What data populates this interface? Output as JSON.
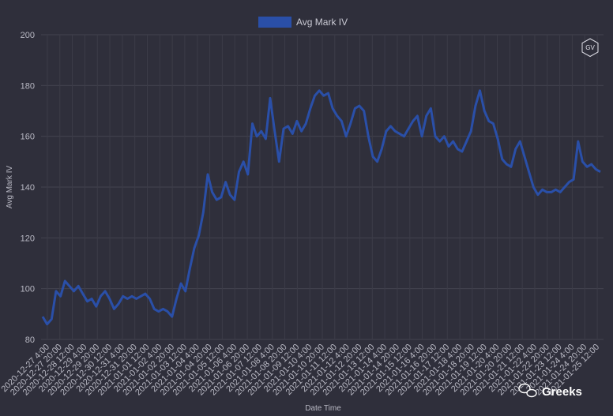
{
  "chart_data": {
    "type": "line",
    "legend": {
      "label": "Avg Mark IV",
      "color": "#2a4fa8",
      "position": "top-center"
    },
    "xlabel": "Date Time",
    "ylabel": "Avg Mark IV",
    "ylim": [
      80,
      200
    ],
    "yticks": [
      80,
      100,
      120,
      140,
      160,
      180,
      200
    ],
    "grid": true,
    "x_tick_labels": [
      "2020-12-27 4:00",
      "2020-12-27 20:00",
      "2020-12-28 12:00",
      "2020-12-29 4:00",
      "2020-12-29 20:00",
      "2020-12-30 12:00",
      "2020-12-31 4:00",
      "2020-12-31 20:00",
      "2021-01-01 12:00",
      "2021-01-02 4:00",
      "2021-01-02 20:00",
      "2021-01-03 12:00",
      "2021-01-04 4:00",
      "2021-01-04 20:00",
      "2021-01-05 12:00",
      "2021-01-06 4:00",
      "2021-01-06 20:00",
      "2021-01-07 12:00",
      "2021-01-08 4:00",
      "2021-01-08 20:00",
      "2021-01-09 12:00",
      "2021-01-10 4:00",
      "2021-01-10 20:00",
      "2021-01-11 12:00",
      "2021-01-12 4:00",
      "2021-01-12 20:00",
      "2021-01-13 12:00",
      "2021-01-14 4:00",
      "2021-01-14 20:00",
      "2021-01-15 12:00",
      "2021-01-16 4:00",
      "2021-01-16 20:00",
      "2021-01-17 12:00",
      "2021-01-18 4:00",
      "2021-01-18 20:00",
      "2021-01-19 12:00",
      "2021-01-20 4:00",
      "2021-01-20 20:00",
      "2021-01-21 12:00",
      "2021-01-22 4:00",
      "2021-01-22 20:00",
      "2021-01-23 12:00",
      "2021-01-24 4:00",
      "2021-01-24 20:00",
      "2021-01-25 12:00"
    ],
    "series": [
      {
        "name": "Avg Mark IV",
        "color": "#2a4fa8",
        "values": [
          89,
          86,
          88,
          99,
          97,
          103,
          101,
          99,
          101,
          98,
          95,
          96,
          93,
          97,
          99,
          96,
          92,
          94,
          97,
          96,
          97,
          96,
          97,
          98,
          96,
          92,
          91,
          92,
          91,
          89,
          96,
          102,
          99,
          108,
          116,
          121,
          130,
          145,
          138,
          135,
          136,
          142,
          137,
          135,
          146,
          150,
          145,
          165,
          160,
          162,
          159,
          175,
          162,
          150,
          163,
          164,
          161,
          166,
          162,
          165,
          171,
          176,
          178,
          176,
          177,
          171,
          168,
          166,
          160,
          165,
          171,
          172,
          170,
          160,
          152,
          150,
          155,
          162,
          164,
          162,
          161,
          160,
          163,
          166,
          168,
          160,
          168,
          171,
          160,
          158,
          160,
          156,
          158,
          155,
          154,
          158,
          162,
          172,
          178,
          170,
          166,
          165,
          159,
          151,
          149,
          148,
          155,
          158,
          152,
          146,
          140,
          137,
          139,
          138,
          138,
          139,
          138,
          140,
          142,
          143,
          158,
          150,
          148,
          149,
          147,
          146
        ]
      }
    ]
  },
  "watermarks": {
    "badge": "GV",
    "brand": "Greeks"
  }
}
